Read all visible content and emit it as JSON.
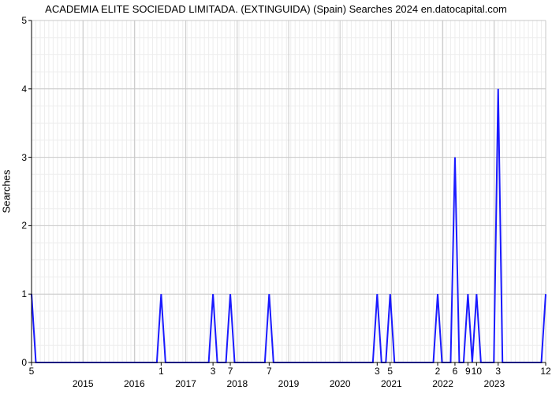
{
  "title": "ACADEMIA ELITE SOCIEDAD LIMITADA. (EXTINGUIDA) (Spain) Searches 2024 en.datocapital.com",
  "y_axis": {
    "label": "Searches",
    "ticks": [
      0,
      1,
      2,
      3,
      4,
      5
    ],
    "lim": [
      0,
      5
    ]
  },
  "x_axis": {
    "category_labels": [
      "2015",
      "2016",
      "2017",
      "2018",
      "2019",
      "2020",
      "2021",
      "2022",
      "2023"
    ],
    "n_points": 120
  },
  "style": {
    "line_color": "#1a1aff",
    "line_width": 2,
    "axis_color": "#000000",
    "major_grid_color": "#c8c8c8",
    "minor_grid_color": "#ededed",
    "background": "#ffffff",
    "tick_fontsize": 12,
    "title_fontsize": 13
  },
  "spikes": [
    {
      "idx": 0,
      "value": 1,
      "label": "5"
    },
    {
      "idx": 30,
      "value": 1,
      "label": "1"
    },
    {
      "idx": 42,
      "value": 1,
      "label": "3"
    },
    {
      "idx": 46,
      "value": 1,
      "label": "7"
    },
    {
      "idx": 55,
      "value": 1,
      "label": "7"
    },
    {
      "idx": 80,
      "value": 1,
      "label": "3"
    },
    {
      "idx": 83,
      "value": 1,
      "label": "5"
    },
    {
      "idx": 94,
      "value": 1,
      "label": "2"
    },
    {
      "idx": 98,
      "value": 3,
      "label": "6"
    },
    {
      "idx": 101,
      "value": 1,
      "label": "9"
    },
    {
      "idx": 103,
      "value": 1,
      "label": "10"
    },
    {
      "idx": 108,
      "value": 4,
      "label": "3"
    },
    {
      "idx": 119,
      "value": 1,
      "label": "12"
    }
  ]
}
